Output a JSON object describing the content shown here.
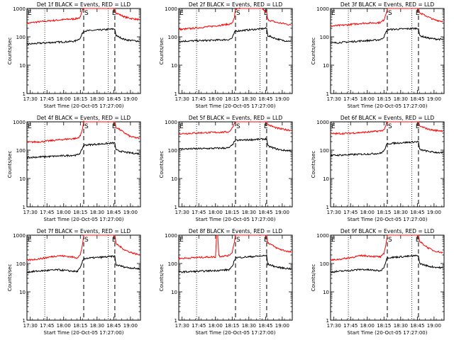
{
  "figure": {
    "panel_title_suffix": "BLACK = Events, RED = LLD",
    "xlabel": "Start Time (20-Oct-05 17:27:00)",
    "ylabel": "Counts/sec",
    "x_tick_labels": [
      "17:30",
      "17:45",
      "18:00",
      "18:15",
      "18:30",
      "18:45",
      "19:00"
    ],
    "y_tick_labels": [
      "1",
      "10",
      "100",
      "1000"
    ],
    "colors": {
      "events": "#000000",
      "lld": "#ff0000",
      "axes": "#000000"
    },
    "marker_labels": {
      "start": "E",
      "saa": "S",
      "end": "E"
    }
  },
  "chart_data": [
    {
      "type": "line",
      "title": "Det 1f BLACK = Events, RED = LLD",
      "xlabel": "Start Time (20-Oct-05 17:27:00)",
      "ylabel": "Counts/sec",
      "xlim": [
        "17:27",
        "19:09"
      ],
      "ylim": [
        1,
        1000
      ],
      "yscale": "log",
      "dotted_lines": [
        "17:43",
        "18:40"
      ],
      "dashed_lines": [
        "18:18",
        "18:46"
      ],
      "series": [
        {
          "color": "red",
          "x": [
            "17:27",
            "17:35",
            "17:45",
            "17:55",
            "18:05",
            "18:10",
            "18:15",
            "18:17",
            "18:18",
            "18:46",
            "18:47",
            "18:55",
            "19:00",
            "19:05",
            "19:08"
          ],
          "values": [
            300,
            330,
            360,
            390,
            420,
            430,
            480,
            900,
            1000,
            1000,
            700,
            500,
            450,
            420,
            400
          ]
        },
        {
          "color": "black",
          "x": [
            "17:27",
            "17:35",
            "17:45",
            "17:55",
            "18:05",
            "18:10",
            "18:15",
            "18:17",
            "18:18",
            "18:46",
            "18:47",
            "18:55",
            "19:00",
            "19:05",
            "19:08"
          ],
          "values": [
            55,
            58,
            62,
            65,
            68,
            70,
            90,
            140,
            160,
            190,
            110,
            80,
            75,
            72,
            70
          ]
        }
      ]
    },
    {
      "type": "line",
      "title": "Det 2f BLACK = Events, RED = LLD",
      "xlabel": "Start Time (20-Oct-05 17:27:00)",
      "ylabel": "Counts/sec",
      "xlim": [
        "17:27",
        "19:09"
      ],
      "ylim": [
        1,
        1000
      ],
      "yscale": "log",
      "dotted_lines": [
        "17:43",
        "18:40"
      ],
      "dashed_lines": [
        "18:18",
        "18:46"
      ],
      "series": [
        {
          "color": "red",
          "x": [
            "17:27",
            "17:40",
            "17:55",
            "18:05",
            "18:12",
            "18:15",
            "18:17",
            "18:18",
            "18:22",
            "18:42",
            "18:46",
            "18:47",
            "18:55",
            "19:00",
            "19:08"
          ],
          "values": [
            180,
            200,
            230,
            260,
            280,
            300,
            500,
            900,
            1000,
            1000,
            700,
            400,
            320,
            300,
            260
          ]
        },
        {
          "color": "black",
          "x": [
            "17:27",
            "17:40",
            "17:55",
            "18:05",
            "18:12",
            "18:15",
            "18:17",
            "18:18",
            "18:46",
            "18:47",
            "18:55",
            "19:00",
            "19:08"
          ],
          "values": [
            70,
            72,
            75,
            78,
            80,
            90,
            140,
            160,
            200,
            110,
            85,
            75,
            70
          ]
        }
      ]
    },
    {
      "type": "line",
      "title": "Det 3f BLACK = Events, RED = LLD",
      "xlabel": "Start Time (20-Oct-05 17:27:00)",
      "ylabel": "Counts/sec",
      "xlim": [
        "17:27",
        "19:09"
      ],
      "ylim": [
        1,
        1000
      ],
      "yscale": "log",
      "dotted_lines": [
        "17:43",
        "18:40"
      ],
      "dashed_lines": [
        "18:18",
        "18:46"
      ],
      "series": [
        {
          "color": "red",
          "x": [
            "17:27",
            "17:40",
            "17:55",
            "18:05",
            "18:12",
            "18:15",
            "18:17",
            "18:18",
            "18:46",
            "18:47",
            "18:55",
            "19:00",
            "19:08"
          ],
          "values": [
            240,
            260,
            300,
            310,
            320,
            400,
            700,
            1000,
            1000,
            700,
            500,
            400,
            350
          ]
        },
        {
          "color": "black",
          "x": [
            "17:27",
            "17:40",
            "17:55",
            "18:05",
            "18:12",
            "18:15",
            "18:17",
            "18:18",
            "18:46",
            "18:47",
            "18:55",
            "19:00",
            "19:08"
          ],
          "values": [
            60,
            65,
            72,
            75,
            80,
            100,
            150,
            180,
            200,
            110,
            90,
            85,
            80
          ]
        }
      ]
    },
    {
      "type": "line",
      "title": "Det 4f BLACK = Events, RED = LLD",
      "xlabel": "Start Time (20-Oct-05 17:27:00)",
      "ylabel": "Counts/sec",
      "xlim": [
        "17:27",
        "19:09"
      ],
      "ylim": [
        1,
        1000
      ],
      "yscale": "log",
      "dotted_lines": [
        "17:43",
        "18:40"
      ],
      "dashed_lines": [
        "18:18",
        "18:46"
      ],
      "series": [
        {
          "color": "red",
          "x": [
            "17:27",
            "17:40",
            "17:55",
            "18:05",
            "18:12",
            "18:15",
            "18:17",
            "18:18",
            "18:46",
            "18:47",
            "18:55",
            "19:00",
            "19:08"
          ],
          "values": [
            190,
            200,
            230,
            250,
            260,
            320,
            600,
            1000,
            1000,
            650,
            400,
            300,
            260
          ]
        },
        {
          "color": "black",
          "x": [
            "17:27",
            "17:40",
            "17:55",
            "18:05",
            "18:12",
            "18:15",
            "18:17",
            "18:18",
            "18:46",
            "18:47",
            "18:55",
            "19:00",
            "19:08"
          ],
          "values": [
            55,
            58,
            62,
            65,
            67,
            80,
            120,
            150,
            180,
            100,
            85,
            80,
            75
          ]
        }
      ]
    },
    {
      "type": "line",
      "title": "Det 5f BLACK = Events, RED = LLD",
      "xlabel": "Start Time (20-Oct-05 17:27:00)",
      "ylabel": "Counts/sec",
      "xlim": [
        "17:27",
        "19:09"
      ],
      "ylim": [
        1,
        1000
      ],
      "yscale": "log",
      "dotted_lines": [
        "17:43",
        "18:40"
      ],
      "dashed_lines": [
        "18:18",
        "18:46"
      ],
      "series": [
        {
          "color": "red",
          "x": [
            "17:27",
            "17:40",
            "17:55",
            "18:05",
            "18:12",
            "18:15",
            "18:17",
            "18:18",
            "18:46",
            "18:47",
            "18:55",
            "19:00",
            "19:08"
          ],
          "values": [
            380,
            400,
            420,
            430,
            440,
            600,
            900,
            1000,
            1000,
            800,
            600,
            550,
            500
          ]
        },
        {
          "color": "black",
          "x": [
            "17:27",
            "17:40",
            "17:55",
            "18:05",
            "18:12",
            "18:15",
            "18:17",
            "18:18",
            "18:46",
            "18:47",
            "18:55",
            "19:00",
            "19:08"
          ],
          "values": [
            110,
            112,
            115,
            118,
            120,
            150,
            200,
            220,
            250,
            140,
            110,
            100,
            95
          ]
        }
      ]
    },
    {
      "type": "line",
      "title": "Det 6f BLACK = Events, RED = LLD",
      "xlabel": "Start Time (20-Oct-05 17:27:00)",
      "ylabel": "Counts/sec",
      "xlim": [
        "17:27",
        "19:09"
      ],
      "ylim": [
        1,
        1000
      ],
      "yscale": "log",
      "dotted_lines": [
        "17:43",
        "18:40"
      ],
      "dashed_lines": [
        "18:18",
        "18:46"
      ],
      "series": [
        {
          "color": "red",
          "x": [
            "17:27",
            "17:40",
            "17:55",
            "18:05",
            "18:12",
            "18:15",
            "18:17",
            "18:18",
            "18:46",
            "18:47",
            "18:55",
            "19:00",
            "19:08"
          ],
          "values": [
            380,
            390,
            420,
            450,
            480,
            520,
            800,
            1000,
            1000,
            700,
            550,
            500,
            480
          ]
        },
        {
          "color": "black",
          "x": [
            "17:27",
            "17:40",
            "17:55",
            "18:05",
            "18:12",
            "18:15",
            "18:17",
            "18:18",
            "18:46",
            "18:47",
            "18:55",
            "19:00",
            "19:08"
          ],
          "values": [
            65,
            68,
            72,
            75,
            78,
            95,
            140,
            170,
            200,
            105,
            90,
            85,
            80
          ]
        }
      ]
    },
    {
      "type": "line",
      "title": "Det 7f BLACK = Events, RED = LLD",
      "xlabel": "Start Time (20-Oct-05 17:27:00)",
      "ylabel": "Counts/sec",
      "xlim": [
        "17:27",
        "19:09"
      ],
      "ylim": [
        1,
        1000
      ],
      "yscale": "log",
      "dotted_lines": [
        "17:43",
        "18:40"
      ],
      "dashed_lines": [
        "18:18",
        "18:46"
      ],
      "series": [
        {
          "color": "red",
          "x": [
            "17:27",
            "17:40",
            "17:55",
            "18:05",
            "18:12",
            "18:15",
            "18:17",
            "18:18",
            "18:46",
            "18:47",
            "18:55",
            "19:00",
            "19:08"
          ],
          "values": [
            130,
            150,
            190,
            175,
            160,
            200,
            500,
            1000,
            1000,
            500,
            300,
            250,
            200
          ]
        },
        {
          "color": "black",
          "x": [
            "17:27",
            "17:40",
            "17:55",
            "18:05",
            "18:12",
            "18:15",
            "18:17",
            "18:18",
            "18:46",
            "18:47",
            "18:55",
            "19:00",
            "19:08"
          ],
          "values": [
            50,
            55,
            60,
            55,
            52,
            70,
            120,
            150,
            180,
            90,
            75,
            70,
            65
          ]
        }
      ]
    },
    {
      "type": "line",
      "title": "Det 8f BLACK = Events, RED = LLD",
      "xlabel": "Start Time (20-Oct-05 17:27:00)",
      "ylabel": "Counts/sec",
      "xlim": [
        "17:27",
        "19:09"
      ],
      "ylim": [
        1,
        1000
      ],
      "yscale": "log",
      "dotted_lines": [
        "17:43",
        "18:40"
      ],
      "dashed_lines": [
        "18:18",
        "18:46"
      ],
      "series": [
        {
          "color": "red",
          "x": [
            "17:27",
            "17:40",
            "17:55",
            "18:00",
            "18:01",
            "18:02",
            "18:03",
            "18:04",
            "18:12",
            "18:15",
            "18:17",
            "18:18",
            "18:46",
            "18:47",
            "18:55",
            "19:00",
            "19:08"
          ],
          "values": [
            150,
            160,
            170,
            170,
            1000,
            1000,
            200,
            180,
            190,
            250,
            600,
            1000,
            1000,
            550,
            350,
            300,
            250
          ]
        },
        {
          "color": "black",
          "x": [
            "17:27",
            "17:40",
            "17:55",
            "18:05",
            "18:12",
            "18:15",
            "18:17",
            "18:18",
            "18:46",
            "18:47",
            "18:55",
            "19:00",
            "19:08"
          ],
          "values": [
            50,
            52,
            55,
            58,
            60,
            75,
            130,
            160,
            190,
            95,
            75,
            70,
            65
          ]
        }
      ]
    },
    {
      "type": "line",
      "title": "Det 9f BLACK = Events, RED = LLD",
      "xlabel": "Start Time (20-Oct-05 17:27:00)",
      "ylabel": "Counts/sec",
      "xlim": [
        "17:27",
        "19:09"
      ],
      "ylim": [
        1,
        1000
      ],
      "yscale": "log",
      "dotted_lines": [
        "17:43",
        "18:40"
      ],
      "dashed_lines": [
        "18:18",
        "18:46"
      ],
      "series": [
        {
          "color": "red",
          "x": [
            "17:27",
            "17:40",
            "17:55",
            "18:05",
            "18:12",
            "18:15",
            "18:17",
            "18:18",
            "18:46",
            "18:47",
            "18:55",
            "19:00",
            "19:08"
          ],
          "values": [
            130,
            150,
            190,
            180,
            170,
            220,
            550,
            1000,
            1000,
            600,
            350,
            280,
            240
          ]
        },
        {
          "color": "black",
          "x": [
            "17:27",
            "17:40",
            "17:55",
            "18:05",
            "18:12",
            "18:15",
            "18:17",
            "18:18",
            "18:46",
            "18:47",
            "18:55",
            "19:00",
            "19:08"
          ],
          "values": [
            50,
            55,
            62,
            58,
            55,
            75,
            130,
            160,
            190,
            100,
            80,
            75,
            70
          ]
        }
      ]
    }
  ]
}
